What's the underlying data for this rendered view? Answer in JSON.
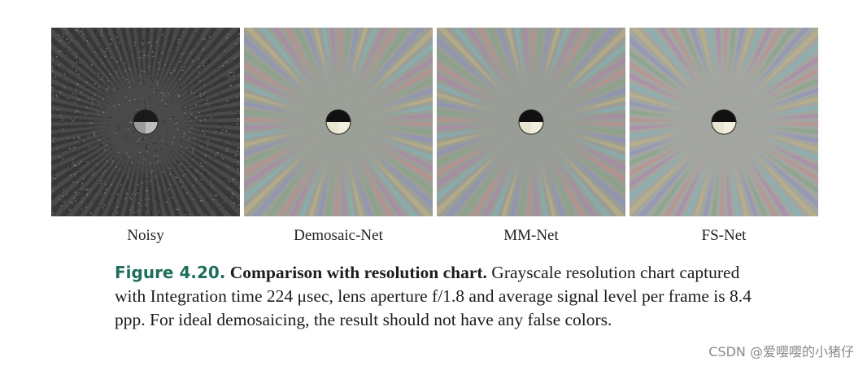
{
  "panels": [
    {
      "label": "Noisy",
      "style": "noisy",
      "bg": "#4a4a4a"
    },
    {
      "label": "Demosaic-Net",
      "style": "color",
      "bg": "#9b9f97"
    },
    {
      "label": "MM-Net",
      "style": "color",
      "bg": "#999d96"
    },
    {
      "label": "FS-Net",
      "style": "color",
      "bg": "#a3a6a0"
    }
  ],
  "caption": {
    "figure_number": "Figure 4.20.",
    "title": "Comparison with resolution chart.",
    "body": "Grayscale resolution chart captured with Integration time 224 μsec, lens aperture f/1.8 and average signal level per frame is 8.4 ppp. For ideal demosaicing, the result should not have any false colors."
  },
  "watermark": "CSDN @爱嘤嘤的小猪仔"
}
